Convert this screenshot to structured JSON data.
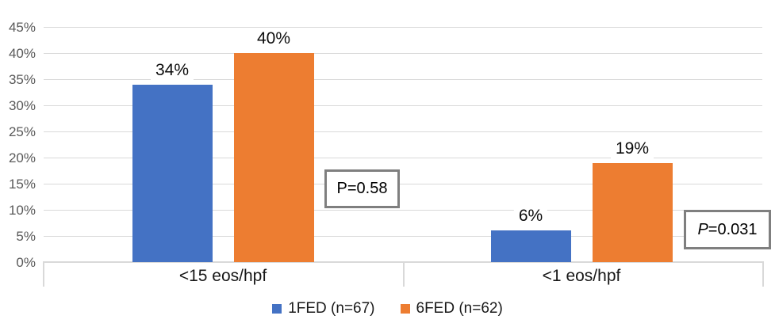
{
  "chart_data": {
    "type": "bar",
    "categories": [
      "<15 eos/hpf",
      "<1 eos/hpf"
    ],
    "series": [
      {
        "name": "1FED (n=67)",
        "color": "#4472C4",
        "values": [
          34,
          6
        ],
        "value_labels": [
          "34%",
          "6%"
        ]
      },
      {
        "name": "6FED (n=62)",
        "color": "#ED7D31",
        "values": [
          40,
          19
        ],
        "value_labels": [
          "40%",
          "19%"
        ]
      }
    ],
    "title": "",
    "xlabel": "",
    "ylabel": "",
    "ylim": [
      0,
      45
    ],
    "yticks": [
      "0%",
      "5%",
      "10%",
      "15%",
      "20%",
      "25%",
      "30%",
      "35%",
      "40%",
      "45%"
    ],
    "ytick_values": [
      0,
      5,
      10,
      15,
      20,
      25,
      30,
      35,
      40,
      45
    ],
    "grid": true,
    "legend_position": "bottom",
    "annotations": [
      {
        "prefix": "P",
        "rest": "=0.58",
        "prefix_italic": false,
        "category_index": 0
      },
      {
        "prefix": "P",
        "rest": "=0.031",
        "prefix_italic": true,
        "category_index": 1
      }
    ],
    "colors": {
      "series_1fed": "#4472C4",
      "series_6fed": "#ED7D31",
      "gridline": "#D9D9D9",
      "axis_text": "#595959",
      "label_text": "#0D0D0D",
      "p_box_border": "#7F7F7F"
    }
  }
}
